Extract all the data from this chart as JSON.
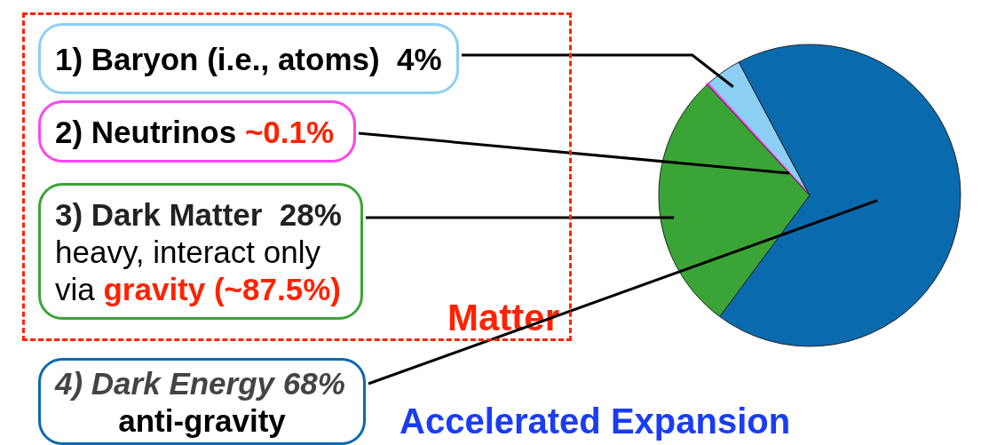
{
  "chart_data": {
    "type": "pie",
    "categories": [
      "1) Baryon (i.e., atoms)",
      "2) Neutrinos",
      "3) Dark Matter",
      "4) Dark Energy"
    ],
    "values": [
      4,
      0.1,
      28,
      68
    ],
    "value_labels": [
      "4%",
      "~0.1%",
      "28%",
      "68%"
    ],
    "colors": [
      "#8ccff4",
      "#ff44ee",
      "#3aa536",
      "#0a6aae"
    ],
    "annotations": [
      "heavy, interact only",
      "via",
      "gravity (~87.5%)",
      "anti-gravity",
      "Matter",
      "Accelerated Expansion"
    ]
  }
}
